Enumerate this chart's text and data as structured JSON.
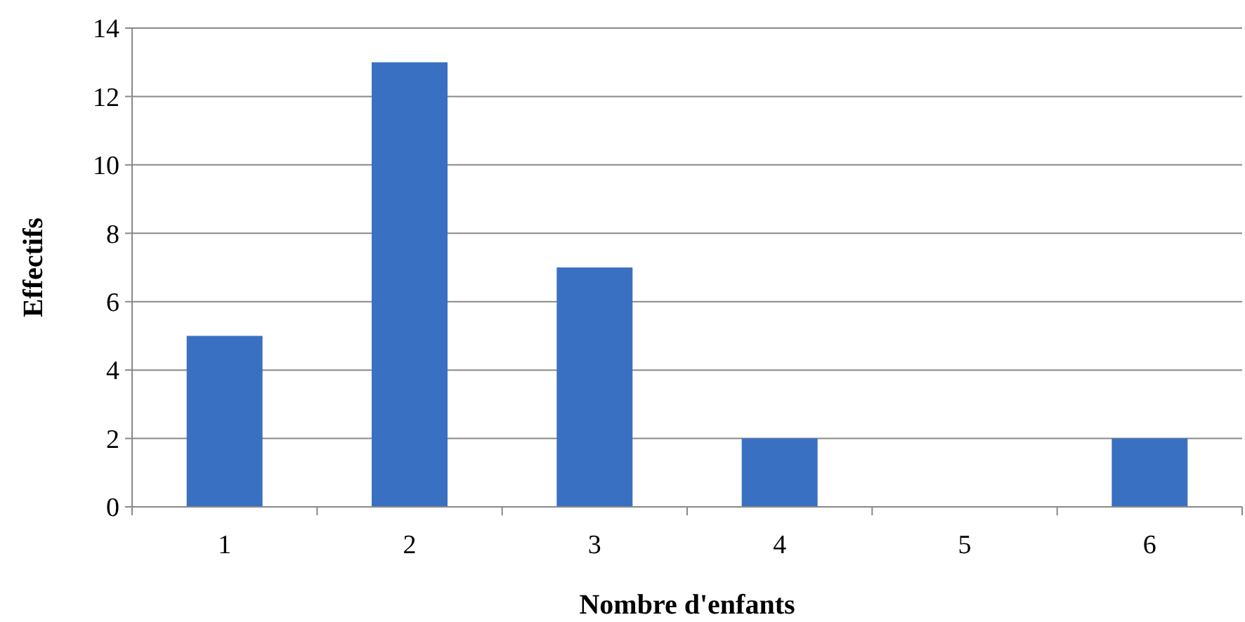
{
  "chart_data": {
    "type": "bar",
    "xlabel": "Nombre d'enfants",
    "ylabel": "Effectifs",
    "categories": [
      "1",
      "2",
      "3",
      "4",
      "5",
      "6"
    ],
    "values": [
      5,
      13,
      7,
      2,
      0,
      2
    ],
    "color": "#3a70c2",
    "ylim": [
      0,
      14
    ],
    "yticks": [
      0,
      2,
      4,
      6,
      8,
      10,
      12,
      14
    ],
    "grid": "y"
  }
}
